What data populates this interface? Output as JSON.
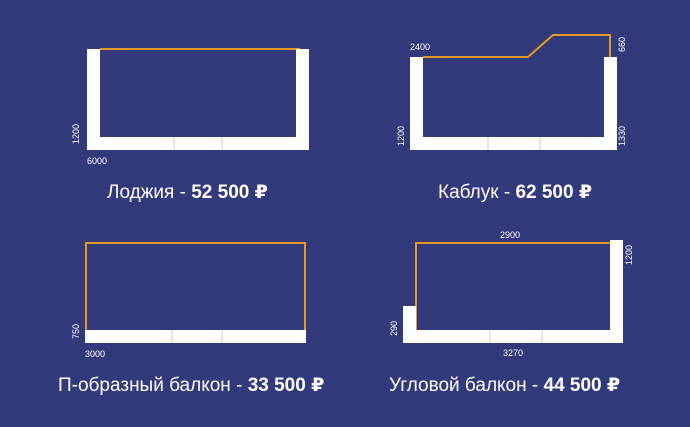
{
  "colors": {
    "background": "#323a7c",
    "wall": "#ffffff",
    "glazing_line": "#e39a1e",
    "text": "#ffffff"
  },
  "options": [
    {
      "name": "Лоджия",
      "separator": " - ",
      "price": "52 500 ₽",
      "dimensions": {
        "width": "6000",
        "depth": "1200"
      }
    },
    {
      "name": "Каблук",
      "separator": " - ",
      "price": "62 500 ₽",
      "dimensions": {
        "top": "2400",
        "right_top": "660",
        "left": "1200",
        "right": "1330"
      }
    },
    {
      "name": "П-образный балкон",
      "separator": " - ",
      "price": "33 500 ₽",
      "dimensions": {
        "width": "3000",
        "depth": "750"
      }
    },
    {
      "name": "Угловой балкон",
      "separator": " - ",
      "price": "44 500 ₽",
      "dimensions": {
        "top": "2900",
        "right": "1200",
        "left": "290",
        "bottom": "3270"
      }
    }
  ]
}
